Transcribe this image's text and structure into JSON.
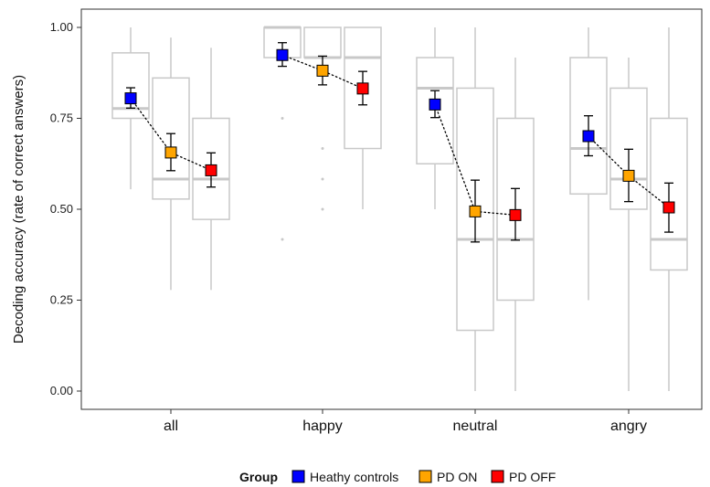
{
  "chart_data": {
    "type": "box+point",
    "title": "",
    "xlabel": "",
    "ylabel": "Decoding accuracy (rate of correct answers)",
    "ylim": [
      0,
      1.05
    ],
    "yticks": [
      0.0,
      0.25,
      0.5,
      0.75,
      1.0
    ],
    "ytick_labels": [
      "0.00",
      "0.25",
      "0.50",
      "0.75",
      "1.00"
    ],
    "categories": [
      "all",
      "happy",
      "neutral",
      "angry"
    ],
    "grid": false,
    "legend": {
      "title": "Group",
      "position": "bottom",
      "entries": [
        {
          "name": "Heathy controls",
          "color": "#0000ff"
        },
        {
          "name": "PD ON",
          "color": "#ffa500"
        },
        {
          "name": "PD OFF",
          "color": "#ff0000"
        }
      ]
    },
    "series": [
      {
        "name": "Heathy controls",
        "color": "#0000ff",
        "boxes": [
          {
            "min": 0.555,
            "q1": 0.75,
            "median": 0.777,
            "q3": 0.93,
            "max": 1.0,
            "outliers": []
          },
          {
            "min": 0.917,
            "q1": 0.917,
            "median": 1.0,
            "q3": 1.0,
            "max": 1.0,
            "outliers": [
              0.75,
              0.417
            ]
          },
          {
            "min": 0.5,
            "q1": 0.625,
            "median": 0.833,
            "q3": 0.917,
            "max": 1.0,
            "outliers": []
          },
          {
            "min": 0.25,
            "q1": 0.542,
            "median": 0.667,
            "q3": 0.917,
            "max": 1.0,
            "outliers": []
          }
        ],
        "mean": [
          0.805,
          0.924,
          0.788,
          0.701
        ],
        "ci_low": [
          0.778,
          0.893,
          0.752,
          0.647
        ],
        "ci_high": [
          0.834,
          0.958,
          0.826,
          0.757
        ]
      },
      {
        "name": "PD ON",
        "color": "#ffa500",
        "boxes": [
          {
            "min": 0.278,
            "q1": 0.528,
            "median": 0.583,
            "q3": 0.861,
            "max": 0.972,
            "outliers": []
          },
          {
            "min": 0.917,
            "q1": 0.917,
            "median": 0.917,
            "q3": 1.0,
            "max": 1.0,
            "outliers": [
              0.667,
              0.583,
              0.5
            ]
          },
          {
            "min": 0.0,
            "q1": 0.167,
            "median": 0.417,
            "q3": 0.833,
            "max": 1.0,
            "outliers": []
          },
          {
            "min": 0.0,
            "q1": 0.5,
            "median": 0.583,
            "q3": 0.833,
            "max": 0.917,
            "outliers": []
          }
        ],
        "mean": [
          0.656,
          0.881,
          0.494,
          0.592
        ],
        "ci_low": [
          0.606,
          0.842,
          0.41,
          0.521
        ],
        "ci_high": [
          0.708,
          0.921,
          0.58,
          0.665
        ]
      },
      {
        "name": "PD OFF",
        "color": "#ff0000",
        "boxes": [
          {
            "min": 0.278,
            "q1": 0.472,
            "median": 0.583,
            "q3": 0.75,
            "max": 0.944,
            "outliers": []
          },
          {
            "min": 0.5,
            "q1": 0.667,
            "median": 0.917,
            "q3": 1.0,
            "max": 1.0,
            "outliers": []
          },
          {
            "min": 0.0,
            "q1": 0.25,
            "median": 0.417,
            "q3": 0.75,
            "max": 0.917,
            "outliers": []
          },
          {
            "min": 0.0,
            "q1": 0.333,
            "median": 0.417,
            "q3": 0.75,
            "max": 1.0,
            "outliers": []
          }
        ],
        "mean": [
          0.607,
          0.832,
          0.484,
          0.505
        ],
        "ci_low": [
          0.561,
          0.787,
          0.415,
          0.437
        ],
        "ci_high": [
          0.655,
          0.879,
          0.557,
          0.572
        ]
      }
    ]
  }
}
